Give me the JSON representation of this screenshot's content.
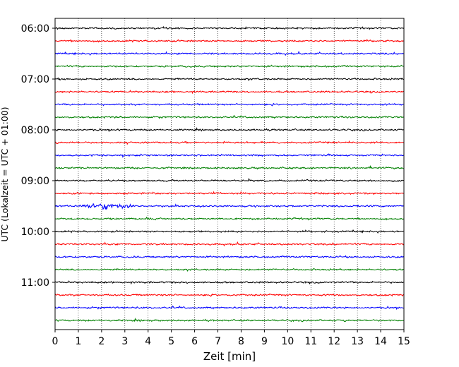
{
  "chart_data": {
    "type": "line",
    "subtype": "helicorder-seismogram",
    "xlabel": "Zeit  [min]",
    "ylabel": "UTC (Lokalzeit = UTC + 01:00)",
    "xlim": [
      0,
      15
    ],
    "x_ticks": [
      "0",
      "1",
      "2",
      "3",
      "4",
      "5",
      "6",
      "7",
      "8",
      "9",
      "10",
      "11",
      "12",
      "13",
      "14",
      "15"
    ],
    "y_tick_labels": [
      "06:00",
      "07:00",
      "08:00",
      "09:00",
      "10:00",
      "11:00"
    ],
    "grid": "vertical dotted at each minute",
    "line_colors": [
      "#000000",
      "#ff0000",
      "#0000ff",
      "#008000"
    ],
    "rows": [
      {
        "start": "06:00",
        "color": "#000000"
      },
      {
        "start": "06:15",
        "color": "#ff0000"
      },
      {
        "start": "06:30",
        "color": "#0000ff"
      },
      {
        "start": "06:45",
        "color": "#008000"
      },
      {
        "start": "07:00",
        "color": "#000000"
      },
      {
        "start": "07:15",
        "color": "#ff0000"
      },
      {
        "start": "07:30",
        "color": "#0000ff"
      },
      {
        "start": "07:45",
        "color": "#008000"
      },
      {
        "start": "08:00",
        "color": "#000000"
      },
      {
        "start": "08:15",
        "color": "#ff0000"
      },
      {
        "start": "08:30",
        "color": "#0000ff"
      },
      {
        "start": "08:45",
        "color": "#008000"
      },
      {
        "start": "09:00",
        "color": "#000000"
      },
      {
        "start": "09:15",
        "color": "#ff0000"
      },
      {
        "start": "09:30",
        "color": "#0000ff",
        "event": {
          "from_min": 1.0,
          "to_min": 3.5,
          "strength": "high"
        }
      },
      {
        "start": "09:45",
        "color": "#008000"
      },
      {
        "start": "10:00",
        "color": "#000000"
      },
      {
        "start": "10:15",
        "color": "#ff0000"
      },
      {
        "start": "10:30",
        "color": "#0000ff"
      },
      {
        "start": "10:45",
        "color": "#008000"
      },
      {
        "start": "11:00",
        "color": "#000000"
      },
      {
        "start": "11:15",
        "color": "#ff0000"
      },
      {
        "start": "11:30",
        "color": "#0000ff"
      },
      {
        "start": "11:45",
        "color": "#008000"
      }
    ]
  }
}
